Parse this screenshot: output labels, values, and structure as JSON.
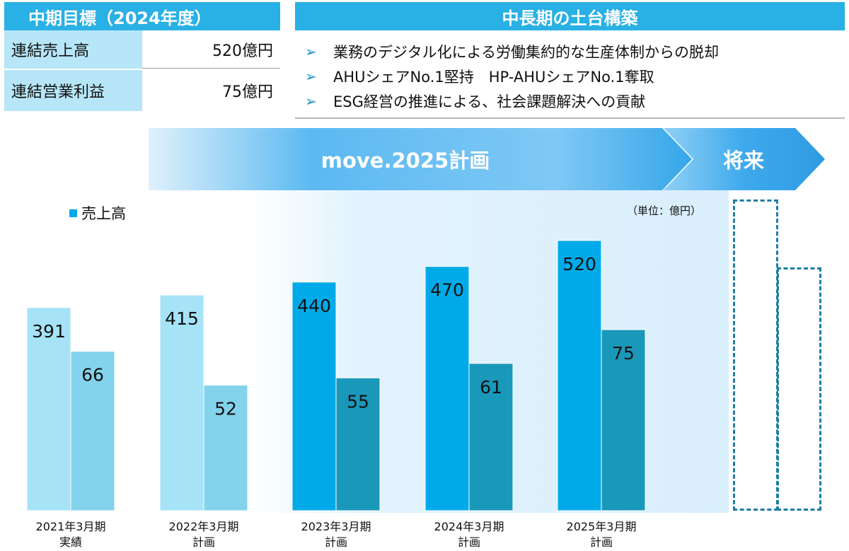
{
  "target": {
    "header": "中期目標（2024年度）",
    "rows": [
      {
        "label": "連結売上高",
        "value": "520億円"
      },
      {
        "label": "連結営業利益",
        "value": "75億円"
      }
    ]
  },
  "foundation": {
    "header": "中長期の土台構築",
    "items": [
      "業務のデジタル化による労働集約的な生産体制からの脱却",
      "AHUシェアNo.1堅持　HP-AHUシェアNo.1奪取",
      "ESG経営の推進による、社会課題解決への貢献"
    ]
  },
  "banners": {
    "plan": "move.2025計画",
    "future": "将来"
  },
  "colors": {
    "header": "#29b0e4",
    "label_cell": "#b6e6f8",
    "actual_sales": "#a6e3f7",
    "actual_profit": "#84d3ec",
    "plan_sales": "#00aae8",
    "plan_profit": "#1a98b9"
  },
  "chart_data": {
    "type": "bar",
    "legend": "売上高",
    "unit": "（単位：億円）",
    "categories": [
      {
        "line1": "2021年3月期",
        "line2": "実績"
      },
      {
        "line1": "2022年3月期",
        "line2": "計画"
      },
      {
        "line1": "2023年3月期",
        "line2": "計画"
      },
      {
        "line1": "2024年3月期",
        "line2": "計画"
      },
      {
        "line1": "2025年3月期",
        "line2": "計画"
      }
    ],
    "series": [
      {
        "values": [
          391,
          415,
          440,
          470,
          520
        ]
      },
      {
        "values": [
          66,
          52,
          55,
          61,
          75
        ]
      }
    ],
    "legend_position": "top-left"
  }
}
